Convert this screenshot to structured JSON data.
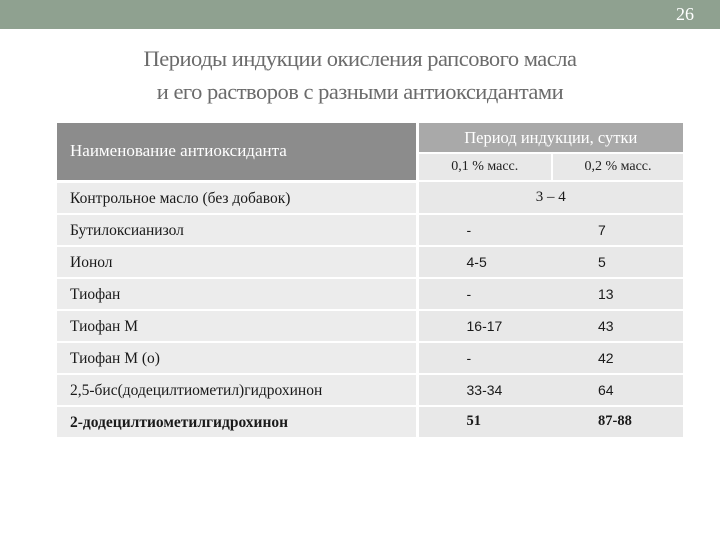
{
  "slide_number": "26",
  "title": {
    "line1": "Периоды индукции окисления рапсового масла",
    "line2": "и его растворов с разными антиоксидантами"
  },
  "table": {
    "header_name": "Наименование антиоксиданта",
    "header_period": "Период индукции, сутки",
    "sub_col1": "0,1 % масс.",
    "sub_col2": "0,2 % масс.",
    "rows": [
      {
        "name": "Контрольное масло (без добавок)",
        "merged": "3 – 4"
      },
      {
        "name": "Бутилоксианизол",
        "v1": "-",
        "v2": "7"
      },
      {
        "name": "Ионол",
        "v1": "4-5",
        "v2": "5"
      },
      {
        "name": "Тиофан",
        "v1": "-",
        "v2": "13"
      },
      {
        "name": "Тиофан М",
        "v1": "16-17",
        "v2": "43"
      },
      {
        "name": "Тиофан М (о)",
        "v1": "-",
        "v2": "42"
      },
      {
        "name": "2,5-бис(додецилтиометил)гидрохинон",
        "v1": "33-34",
        "v2": "64"
      },
      {
        "name": "2-додецилтиометилгидрохинон",
        "v1": "51",
        "v2": "87-88"
      }
    ]
  },
  "colors": {
    "top_bar": "#8fa190",
    "header_dark": "#8c8c8c",
    "header_mid": "#a9a9a9",
    "cell_bg": "#e8e8e8"
  }
}
